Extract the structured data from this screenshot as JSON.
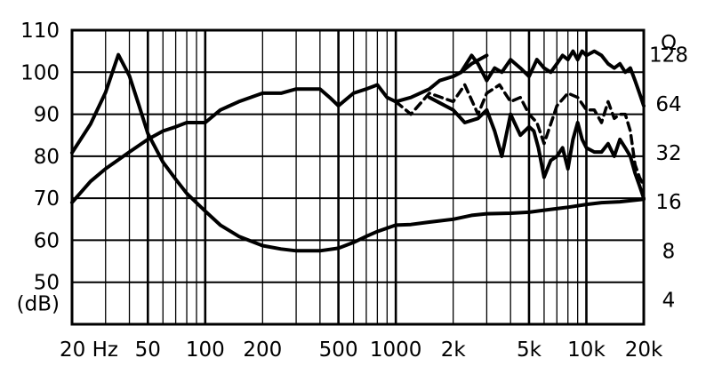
{
  "chart_data": {
    "type": "line",
    "title": "",
    "xlabel": "",
    "ylabel": "(dB)",
    "y2label": "Ω",
    "x_scale": "log",
    "xlim": [
      20,
      20000
    ],
    "ylim": [
      40,
      110
    ],
    "y2_scale": "log",
    "y2lim": [
      2.83,
      181
    ],
    "grid": true,
    "x_ticks": [
      {
        "value": 20,
        "label": "20 Hz"
      },
      {
        "value": 50,
        "label": "50"
      },
      {
        "value": 100,
        "label": "100"
      },
      {
        "value": 200,
        "label": "200"
      },
      {
        "value": 500,
        "label": "500"
      },
      {
        "value": 1000,
        "label": "1000"
      },
      {
        "value": 2000,
        "label": "2k"
      },
      {
        "value": 5000,
        "label": "5k"
      },
      {
        "value": 10000,
        "label": "10k"
      },
      {
        "value": 20000,
        "label": "20k"
      }
    ],
    "y_ticks": [
      {
        "value": 110,
        "label": "110"
      },
      {
        "value": 100,
        "label": "100"
      },
      {
        "value": 90,
        "label": "90"
      },
      {
        "value": 80,
        "label": "80"
      },
      {
        "value": 70,
        "label": "70"
      },
      {
        "value": 60,
        "label": "60"
      },
      {
        "value": 50,
        "label": "50"
      }
    ],
    "y2_ticks": [
      {
        "value": 128,
        "label": "128"
      },
      {
        "value": 64,
        "label": "64"
      },
      {
        "value": 32,
        "label": "32"
      },
      {
        "value": 16,
        "label": "16"
      },
      {
        "value": 8,
        "label": "8"
      },
      {
        "value": 4,
        "label": "4"
      }
    ],
    "series": [
      {
        "axis": "y",
        "style": "solid",
        "x": [
          20,
          25,
          30,
          40,
          50,
          60,
          70,
          80,
          100,
          120,
          150,
          200,
          250,
          300,
          350,
          400,
          450,
          500,
          600,
          700,
          800,
          900,
          1000,
          1200,
          1500,
          1700,
          2000,
          2200,
          2500,
          3000
        ],
        "y": [
          69,
          74,
          77,
          81,
          84,
          86,
          87,
          88,
          88,
          91,
          93,
          95,
          95,
          96,
          96,
          96,
          94,
          92,
          95,
          96,
          97,
          94,
          93,
          94,
          96,
          98,
          99,
          100,
          102,
          104
        ]
      },
      {
        "axis": "y",
        "style": "solid",
        "x": [
          2000,
          2200,
          2500,
          2700,
          3000,
          3300,
          3600,
          4000,
          4500,
          5000,
          5500,
          6000,
          6500,
          7000,
          7500,
          8000,
          8500,
          9000,
          9500,
          10000,
          11000,
          12000,
          13000,
          14000,
          15000,
          16000,
          17000,
          18000,
          19000,
          20000
        ],
        "y": [
          99,
          100,
          104,
          102,
          98,
          101,
          100,
          103,
          101,
          99,
          103,
          101,
          100,
          102,
          104,
          103,
          105,
          103,
          105,
          104,
          105,
          104,
          102,
          101,
          102,
          100,
          101,
          98,
          95,
          92
        ]
      },
      {
        "axis": "y",
        "style": "dashed",
        "x": [
          1000,
          1200,
          1500,
          2000,
          2300,
          2700,
          3000,
          3500,
          4000,
          4500,
          5000,
          5500,
          6000,
          7000,
          8000,
          9000,
          10000,
          11000,
          12000,
          13000,
          14000,
          15000,
          16000,
          17000,
          18000,
          19000,
          20000
        ],
        "y": [
          93,
          90,
          95,
          93,
          97,
          90,
          95,
          97,
          93,
          94,
          90,
          88,
          83,
          92,
          95,
          94,
          91,
          91,
          88,
          93,
          89,
          90,
          90,
          86,
          78,
          75,
          73
        ]
      },
      {
        "axis": "y",
        "style": "solid",
        "x": [
          1500,
          2000,
          2300,
          2700,
          3000,
          3300,
          3600,
          4000,
          4500,
          5000,
          5300,
          5600,
          6000,
          6500,
          7000,
          7500,
          8000,
          8500,
          9000,
          9500,
          10000,
          11000,
          12000,
          13000,
          14000,
          15000,
          16000,
          17000,
          18000,
          19000,
          20000
        ],
        "y": [
          94,
          91,
          88,
          89,
          91,
          86,
          80,
          90,
          85,
          87,
          86,
          82,
          75,
          79,
          80,
          82,
          77,
          84,
          88,
          84,
          82,
          81,
          81,
          83,
          80,
          84,
          82,
          80,
          76,
          73,
          70
        ]
      },
      {
        "axis": "y2",
        "style": "solid",
        "x": [
          20,
          25,
          30,
          35,
          40,
          45,
          50,
          60,
          70,
          80,
          100,
          120,
          150,
          200,
          250,
          300,
          400,
          500,
          600,
          700,
          800,
          1000,
          1200,
          1500,
          2000,
          2500,
          3000,
          4000,
          5000,
          6000,
          8000,
          10000,
          12000,
          15000,
          20000
        ],
        "y": [
          32,
          48,
          75,
          128,
          95,
          62,
          42,
          28,
          22,
          18,
          14,
          11.5,
          9.8,
          8.6,
          8.2,
          8,
          8,
          8.3,
          9,
          9.8,
          10.5,
          11.5,
          11.6,
          12,
          12.5,
          13.2,
          13.5,
          13.6,
          13.8,
          14.2,
          14.8,
          15.4,
          15.8,
          16,
          16.6
        ]
      }
    ]
  }
}
